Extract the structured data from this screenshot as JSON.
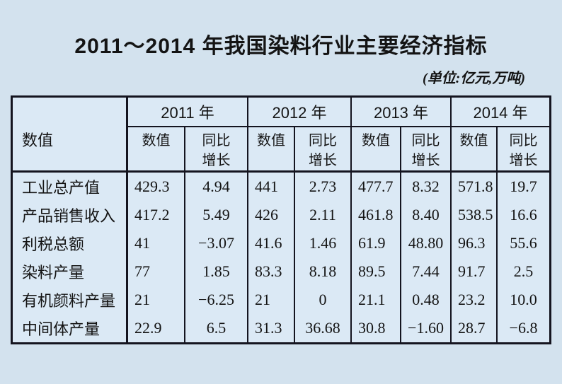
{
  "colors": {
    "page_bg": "#d3e2ee",
    "table_bg": "#dbe9f5",
    "border": "#14141f",
    "text": "#141414"
  },
  "chart_data": {
    "type": "table",
    "title": "2011～2014 年我国染料行业主要经济指标",
    "unit_note": "(单位:亿元,万吨)",
    "corner_header": "数值",
    "year_groups": [
      {
        "year": "2011 年",
        "value_label": "数值",
        "growth_label": "同比增长"
      },
      {
        "year": "2012 年",
        "value_label": "数值",
        "growth_label": "同比增长"
      },
      {
        "year": "2013 年",
        "value_label": "数值",
        "growth_label": "同比增长"
      },
      {
        "year": "2014 年",
        "value_label": "数值",
        "growth_label": "同比增长"
      }
    ],
    "rows": [
      {
        "label": "工业总产值",
        "values": [
          "429.3",
          "4.94",
          "441",
          "2.73",
          "477.7",
          "8.32",
          "571.8",
          "19.7"
        ]
      },
      {
        "label": "产品销售收入",
        "values": [
          "417.2",
          "5.49",
          "426",
          "2.11",
          "461.8",
          "8.40",
          "538.5",
          "16.6"
        ]
      },
      {
        "label": "利税总额",
        "values": [
          "41",
          "−3.07",
          "41.6",
          "1.46",
          "61.9",
          "48.80",
          "96.3",
          "55.6"
        ]
      },
      {
        "label": "染料产量",
        "values": [
          "77",
          "1.85",
          "83.3",
          "8.18",
          "89.5",
          "7.44",
          "91.7",
          "2.5"
        ]
      },
      {
        "label": "有机颜料产量",
        "values": [
          "21",
          "−6.25",
          "21",
          "0",
          "21.1",
          "0.48",
          "23.2",
          "10.0"
        ]
      },
      {
        "label": "中间体产量",
        "values": [
          "22.9",
          "6.5",
          "31.3",
          "36.68",
          "30.8",
          "−1.60",
          "28.7",
          "−6.8"
        ]
      }
    ]
  }
}
